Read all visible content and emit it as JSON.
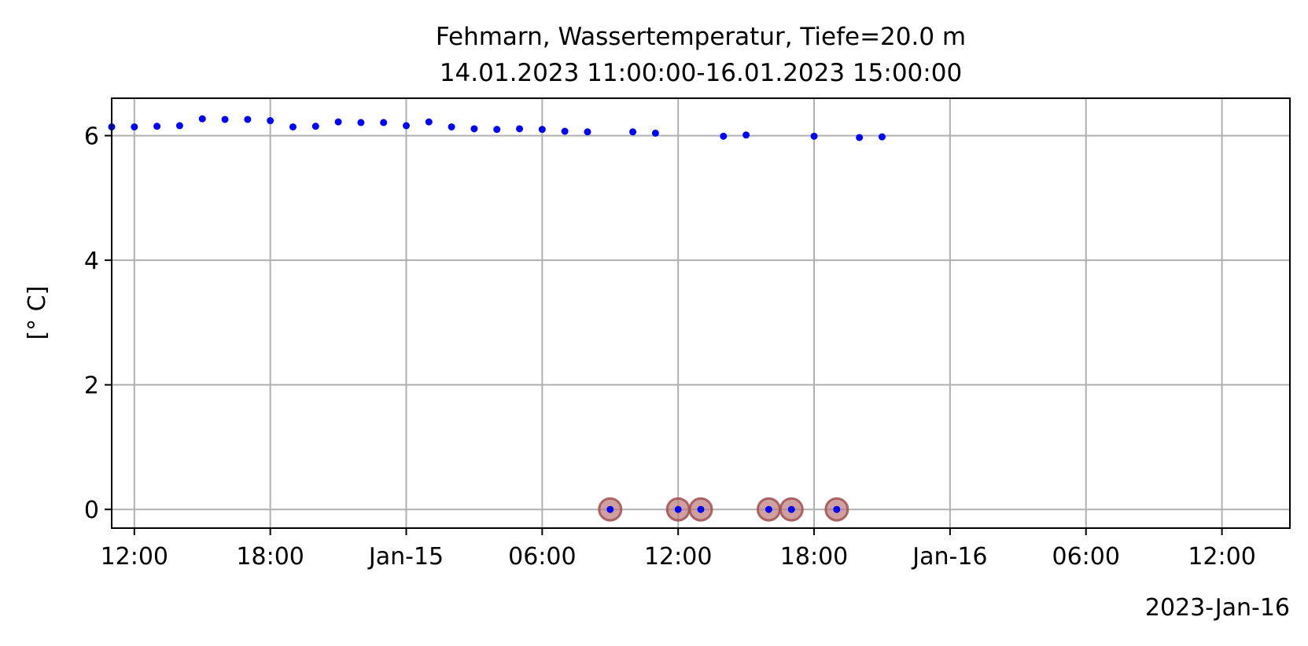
{
  "chart_data": {
    "type": "scatter",
    "title_lines": [
      "Fehmarn, Wassertemperatur, Tiefe=20.0 m",
      "14.01.2023 11:00:00-16.01.2023 15:00:00"
    ],
    "xlabel": "",
    "ylabel": "[° C]",
    "x_offset_label": "2023-Jan-16",
    "xlim": [
      "2023-01-14 11:00",
      "2023-01-16 15:00"
    ],
    "ylim": [
      -0.3,
      6.6
    ],
    "xticks": [
      {
        "value": "2023-01-14 12:00",
        "label": "12:00"
      },
      {
        "value": "2023-01-14 18:00",
        "label": "18:00"
      },
      {
        "value": "2023-01-15 00:00",
        "label": "Jan-15"
      },
      {
        "value": "2023-01-15 06:00",
        "label": "06:00"
      },
      {
        "value": "2023-01-15 12:00",
        "label": "12:00"
      },
      {
        "value": "2023-01-15 18:00",
        "label": "18:00"
      },
      {
        "value": "2023-01-16 00:00",
        "label": "Jan-16"
      },
      {
        "value": "2023-01-16 06:00",
        "label": "06:00"
      },
      {
        "value": "2023-01-16 12:00",
        "label": "12:00"
      }
    ],
    "yticks": [
      {
        "value": 0,
        "label": "0"
      },
      {
        "value": 2,
        "label": "2"
      },
      {
        "value": 4,
        "label": "4"
      },
      {
        "value": 6,
        "label": "6"
      }
    ],
    "grid": true,
    "colors": {
      "points": "#0000ff",
      "flag_fill": "#b97878",
      "flag_stroke": "#a05050",
      "grid": "#b0b0b0",
      "axes": "#000000"
    },
    "series": [
      {
        "marker": "dot",
        "points": [
          {
            "x": "2023-01-14 11:00",
            "y": 6.14
          },
          {
            "x": "2023-01-14 12:00",
            "y": 6.14
          },
          {
            "x": "2023-01-14 13:00",
            "y": 6.15
          },
          {
            "x": "2023-01-14 14:00",
            "y": 6.16
          },
          {
            "x": "2023-01-14 15:00",
            "y": 6.27
          },
          {
            "x": "2023-01-14 16:00",
            "y": 6.26
          },
          {
            "x": "2023-01-14 17:00",
            "y": 6.26
          },
          {
            "x": "2023-01-14 18:00",
            "y": 6.24
          },
          {
            "x": "2023-01-14 19:00",
            "y": 6.14
          },
          {
            "x": "2023-01-14 20:00",
            "y": 6.15
          },
          {
            "x": "2023-01-14 21:00",
            "y": 6.22
          },
          {
            "x": "2023-01-14 22:00",
            "y": 6.21
          },
          {
            "x": "2023-01-14 23:00",
            "y": 6.21
          },
          {
            "x": "2023-01-15 00:00",
            "y": 6.16
          },
          {
            "x": "2023-01-15 01:00",
            "y": 6.22
          },
          {
            "x": "2023-01-15 02:00",
            "y": 6.14
          },
          {
            "x": "2023-01-15 03:00",
            "y": 6.11
          },
          {
            "x": "2023-01-15 04:00",
            "y": 6.1
          },
          {
            "x": "2023-01-15 05:00",
            "y": 6.11
          },
          {
            "x": "2023-01-15 06:00",
            "y": 6.1
          },
          {
            "x": "2023-01-15 07:00",
            "y": 6.07
          },
          {
            "x": "2023-01-15 08:00",
            "y": 6.06
          },
          {
            "x": "2023-01-15 09:00",
            "y": 0.0
          },
          {
            "x": "2023-01-15 10:00",
            "y": 6.06
          },
          {
            "x": "2023-01-15 11:00",
            "y": 6.04
          },
          {
            "x": "2023-01-15 12:00",
            "y": 0.0
          },
          {
            "x": "2023-01-15 13:00",
            "y": 0.0
          },
          {
            "x": "2023-01-15 14:00",
            "y": 5.99
          },
          {
            "x": "2023-01-15 15:00",
            "y": 6.01
          },
          {
            "x": "2023-01-15 16:00",
            "y": 0.0
          },
          {
            "x": "2023-01-15 17:00",
            "y": 0.0
          },
          {
            "x": "2023-01-15 18:00",
            "y": 5.99
          },
          {
            "x": "2023-01-15 19:00",
            "y": 0.0
          },
          {
            "x": "2023-01-15 20:00",
            "y": 5.97
          },
          {
            "x": "2023-01-15 21:00",
            "y": 5.98
          }
        ]
      },
      {
        "marker": "flag-circle",
        "points": [
          {
            "x": "2023-01-15 09:00",
            "y": 0
          },
          {
            "x": "2023-01-15 12:00",
            "y": 0
          },
          {
            "x": "2023-01-15 13:00",
            "y": 0
          },
          {
            "x": "2023-01-15 16:00",
            "y": 0
          },
          {
            "x": "2023-01-15 17:00",
            "y": 0
          },
          {
            "x": "2023-01-15 19:00",
            "y": 0
          }
        ]
      }
    ]
  }
}
